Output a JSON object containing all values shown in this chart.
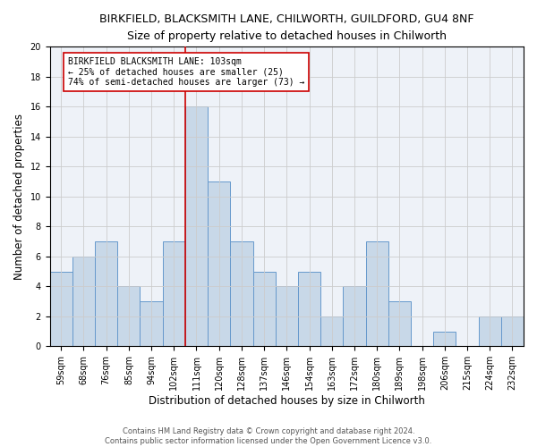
{
  "title": "BIRKFIELD, BLACKSMITH LANE, CHILWORTH, GUILDFORD, GU4 8NF",
  "subtitle": "Size of property relative to detached houses in Chilworth",
  "xlabel": "Distribution of detached houses by size in Chilworth",
  "ylabel": "Number of detached properties",
  "bar_labels": [
    "59sqm",
    "68sqm",
    "76sqm",
    "85sqm",
    "94sqm",
    "102sqm",
    "111sqm",
    "120sqm",
    "128sqm",
    "137sqm",
    "146sqm",
    "154sqm",
    "163sqm",
    "172sqm",
    "180sqm",
    "189sqm",
    "198sqm",
    "206sqm",
    "215sqm",
    "224sqm",
    "232sqm"
  ],
  "bar_values": [
    5,
    6,
    7,
    4,
    3,
    7,
    16,
    11,
    7,
    5,
    4,
    5,
    2,
    4,
    7,
    3,
    0,
    1,
    0,
    2,
    2
  ],
  "bar_color": "#c8d8e8",
  "bar_edge_color": "#6699cc",
  "vline_x": 5.5,
  "vline_color": "#cc0000",
  "annotation_text": "BIRKFIELD BLACKSMITH LANE: 103sqm\n← 25% of detached houses are smaller (25)\n74% of semi-detached houses are larger (73) →",
  "annotation_box_color": "#ffffff",
  "annotation_box_edge": "#cc0000",
  "ylim": [
    0,
    20
  ],
  "yticks": [
    0,
    2,
    4,
    6,
    8,
    10,
    12,
    14,
    16,
    18,
    20
  ],
  "grid_color": "#cccccc",
  "bg_color": "#eef2f8",
  "footer": "Contains HM Land Registry data © Crown copyright and database right 2024.\nContains public sector information licensed under the Open Government Licence v3.0.",
  "title_fontsize": 9,
  "subtitle_fontsize": 9,
  "xlabel_fontsize": 8.5,
  "ylabel_fontsize": 8.5,
  "tick_fontsize": 7,
  "annot_fontsize": 7,
  "footer_fontsize": 6
}
